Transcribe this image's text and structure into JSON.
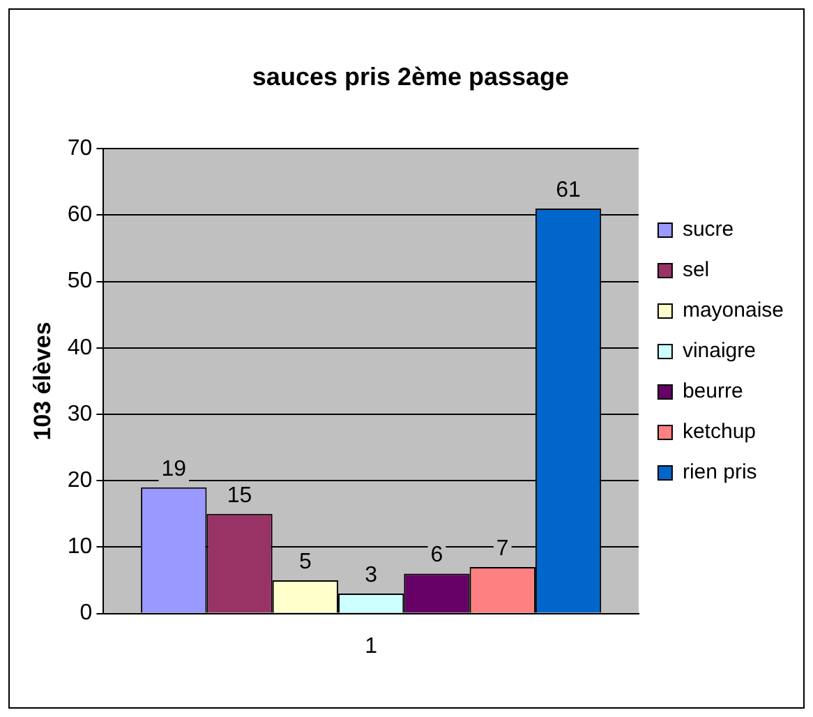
{
  "chart_data": {
    "type": "bar",
    "title": "sauces pris 2ème passage",
    "ylabel": "103 élèves",
    "categories": [
      "1"
    ],
    "series": [
      {
        "name": "sucre",
        "color": "#9999ff",
        "values": [
          19
        ]
      },
      {
        "name": "sel",
        "color": "#993366",
        "values": [
          15
        ]
      },
      {
        "name": "mayonaise",
        "color": "#ffffcc",
        "values": [
          5
        ]
      },
      {
        "name": "vinaigre",
        "color": "#ccffff",
        "values": [
          3
        ]
      },
      {
        "name": "beurre",
        "color": "#660066",
        "values": [
          6
        ]
      },
      {
        "name": "ketchup",
        "color": "#ff8080",
        "values": [
          7
        ]
      },
      {
        "name": "rien pris",
        "color": "#0066cc",
        "values": [
          61
        ]
      }
    ],
    "ylim": [
      0,
      70
    ],
    "yticks": [
      0,
      10,
      20,
      30,
      40,
      50,
      60,
      70
    ],
    "grid": "y",
    "legend": "right",
    "data_labels": true
  }
}
